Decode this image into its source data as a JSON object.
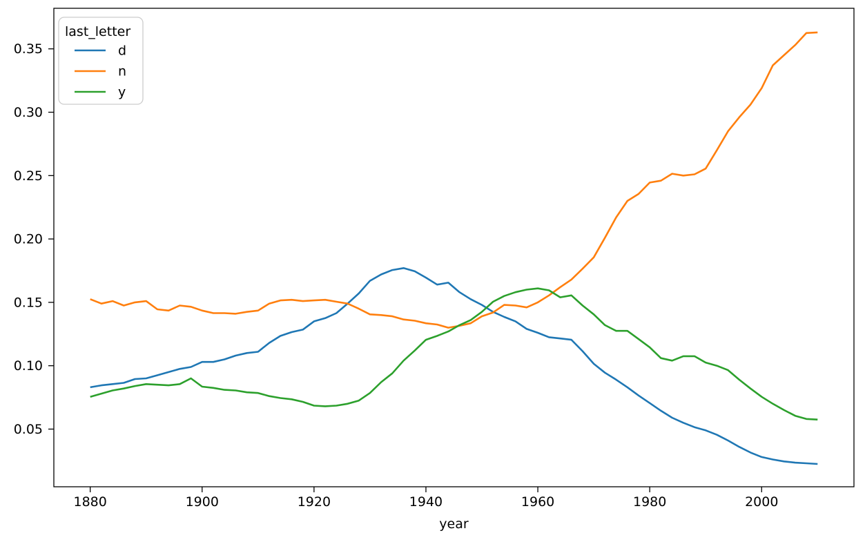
{
  "figure": {
    "background": "#ffffff",
    "text_color": "#000000"
  },
  "chart_data": {
    "type": "line",
    "title": "",
    "xlabel": "year",
    "ylabel": "",
    "grid": false,
    "legend_position": "upper left",
    "legend_title": "last_letter",
    "xlim": [
      1873.5,
      2016.5
    ],
    "ylim": [
      0.0045,
      0.382
    ],
    "x_ticks": [
      1880,
      1900,
      1920,
      1940,
      1960,
      1980,
      2000
    ],
    "y_ticks": [
      0.05,
      0.1,
      0.15,
      0.2,
      0.25,
      0.3,
      0.35
    ],
    "x": [
      1880,
      1882,
      1884,
      1886,
      1888,
      1890,
      1892,
      1894,
      1896,
      1898,
      1900,
      1902,
      1904,
      1906,
      1908,
      1910,
      1912,
      1914,
      1916,
      1918,
      1920,
      1922,
      1924,
      1926,
      1928,
      1930,
      1932,
      1934,
      1936,
      1938,
      1940,
      1942,
      1944,
      1946,
      1948,
      1950,
      1952,
      1954,
      1956,
      1958,
      1960,
      1962,
      1964,
      1966,
      1968,
      1970,
      1972,
      1974,
      1976,
      1978,
      1980,
      1982,
      1984,
      1986,
      1988,
      1990,
      1992,
      1994,
      1996,
      1998,
      2000,
      2002,
      2004,
      2006,
      2008,
      2010
    ],
    "series": [
      {
        "name": "d",
        "color": "#1f77b4",
        "values": [
          0.083,
          0.0845,
          0.0855,
          0.0865,
          0.0895,
          0.09,
          0.0925,
          0.095,
          0.0975,
          0.099,
          0.103,
          0.103,
          0.105,
          0.108,
          0.11,
          0.111,
          0.118,
          0.1235,
          0.1265,
          0.1285,
          0.135,
          0.1375,
          0.1415,
          0.149,
          0.157,
          0.167,
          0.172,
          0.1755,
          0.177,
          0.1745,
          0.1695,
          0.164,
          0.1655,
          0.158,
          0.1525,
          0.148,
          0.1425,
          0.1385,
          0.135,
          0.129,
          0.126,
          0.1225,
          0.1215,
          0.1205,
          0.1115,
          0.1015,
          0.0945,
          0.089,
          0.083,
          0.0765,
          0.0705,
          0.0645,
          0.059,
          0.055,
          0.0515,
          0.049,
          0.0455,
          0.041,
          0.036,
          0.0315,
          0.028,
          0.026,
          0.0245,
          0.0235,
          0.023,
          0.0225
        ]
      },
      {
        "name": "n",
        "color": "#ff7f0e",
        "values": [
          0.1525,
          0.149,
          0.151,
          0.1475,
          0.15,
          0.151,
          0.1445,
          0.1435,
          0.1475,
          0.1465,
          0.1435,
          0.1415,
          0.1415,
          0.141,
          0.1425,
          0.1435,
          0.149,
          0.1515,
          0.152,
          0.151,
          0.1515,
          0.152,
          0.1505,
          0.149,
          0.145,
          0.1405,
          0.14,
          0.139,
          0.1365,
          0.1355,
          0.1335,
          0.1325,
          0.13,
          0.1315,
          0.1335,
          0.139,
          0.142,
          0.148,
          0.1475,
          0.146,
          0.15,
          0.1555,
          0.162,
          0.168,
          0.1765,
          0.1855,
          0.201,
          0.217,
          0.23,
          0.2355,
          0.2445,
          0.246,
          0.2515,
          0.25,
          0.251,
          0.2555,
          0.27,
          0.285,
          0.296,
          0.306,
          0.319,
          0.337,
          0.345,
          0.353,
          0.3625,
          0.363
        ]
      },
      {
        "name": "y",
        "color": "#2ca02c",
        "values": [
          0.0755,
          0.078,
          0.0805,
          0.082,
          0.084,
          0.0855,
          0.085,
          0.0845,
          0.0855,
          0.09,
          0.0835,
          0.0825,
          0.081,
          0.0805,
          0.079,
          0.0785,
          0.076,
          0.0745,
          0.0735,
          0.0715,
          0.0685,
          0.068,
          0.0685,
          0.07,
          0.0725,
          0.0785,
          0.087,
          0.094,
          0.104,
          0.112,
          0.1205,
          0.1235,
          0.127,
          0.132,
          0.136,
          0.1425,
          0.1505,
          0.155,
          0.158,
          0.16,
          0.161,
          0.1595,
          0.154,
          0.1555,
          0.1475,
          0.1405,
          0.132,
          0.1275,
          0.1275,
          0.121,
          0.1145,
          0.106,
          0.104,
          0.1075,
          0.1075,
          0.1025,
          0.1,
          0.0965,
          0.089,
          0.082,
          0.0755,
          0.07,
          0.065,
          0.0605,
          0.058,
          0.0575
        ]
      }
    ]
  }
}
